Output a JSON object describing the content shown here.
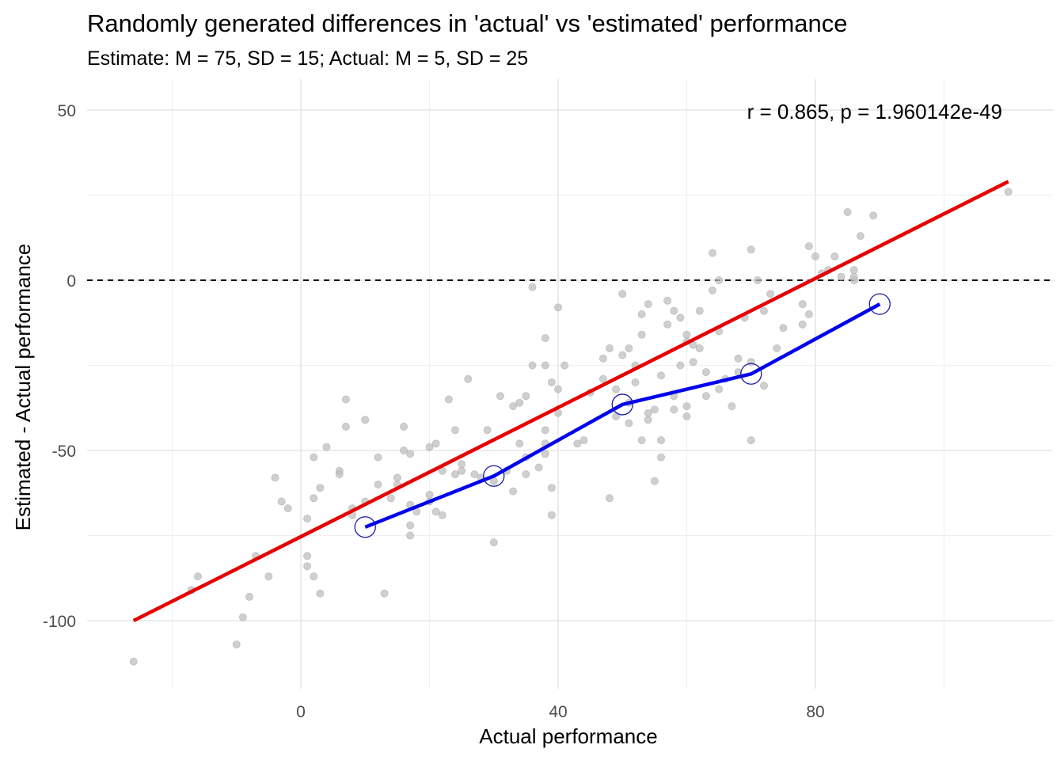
{
  "chart_data": {
    "type": "scatter",
    "title": "Randomly generated differences in 'actual' vs 'estimated' performance",
    "subtitle": "Estimate: M = 75, SD = 15; Actual: M = 5, SD = 25",
    "xlabel": "Actual performance",
    "ylabel": "Estimated - Actual performance",
    "xlim": [
      -26,
      116
    ],
    "ylim": [
      -120,
      55
    ],
    "x_ticks": [
      0,
      40,
      80
    ],
    "y_ticks": [
      50,
      0,
      -50,
      -100
    ],
    "grid": true,
    "annotation": "r = 0.865, p = 1.960142e-49",
    "reference_line": {
      "y": 0,
      "style": "dashed",
      "color": "#000000"
    },
    "colors": {
      "points": "#bfbfbf",
      "regression": "#e60000",
      "binned": "#0000ee"
    },
    "regression_line": {
      "x": [
        -26,
        110
      ],
      "y": [
        -100,
        29
      ]
    },
    "binned_means": {
      "x": [
        10,
        30,
        50,
        70,
        90
      ],
      "y": [
        -72.5,
        -57.5,
        -36.5,
        -27.5,
        -7
      ]
    },
    "series": [
      {
        "points": [
          [
            -26,
            -112
          ],
          [
            -17,
            -91
          ],
          [
            -16,
            -87
          ],
          [
            -9,
            -99
          ],
          [
            -8,
            -93
          ],
          [
            -7,
            -81
          ],
          [
            -5,
            -87
          ],
          [
            -4,
            -58
          ],
          [
            -3,
            -65
          ],
          [
            -2,
            -67
          ],
          [
            -10,
            -107
          ],
          [
            1,
            -81
          ],
          [
            1,
            -84
          ],
          [
            1,
            -70
          ],
          [
            2,
            -52
          ],
          [
            2,
            -64
          ],
          [
            2,
            -87
          ],
          [
            3,
            -61
          ],
          [
            3,
            -92
          ],
          [
            4,
            -49
          ],
          [
            6,
            -56
          ],
          [
            6,
            -57
          ],
          [
            7,
            -35
          ],
          [
            7,
            -43
          ],
          [
            8,
            -69
          ],
          [
            8,
            -67
          ],
          [
            10,
            -65
          ],
          [
            10,
            -41
          ],
          [
            12,
            -52
          ],
          [
            12,
            -60
          ],
          [
            13,
            -92
          ],
          [
            14,
            -64
          ],
          [
            15,
            -60
          ],
          [
            15,
            -58
          ],
          [
            16,
            -43
          ],
          [
            16,
            -50
          ],
          [
            17,
            -51
          ],
          [
            17,
            -66
          ],
          [
            17,
            -72
          ],
          [
            17,
            -75
          ],
          [
            18,
            -68
          ],
          [
            20,
            -65
          ],
          [
            20,
            -63
          ],
          [
            20,
            -49
          ],
          [
            21,
            -48
          ],
          [
            21,
            -68
          ],
          [
            22,
            -69
          ],
          [
            22,
            -56
          ],
          [
            23,
            -35
          ],
          [
            24,
            -44
          ],
          [
            24,
            -57
          ],
          [
            25,
            -54
          ],
          [
            25,
            -56
          ],
          [
            26,
            -29
          ],
          [
            27,
            -57
          ],
          [
            28,
            -58
          ],
          [
            29,
            -44
          ],
          [
            30,
            -59
          ],
          [
            30,
            -77
          ],
          [
            31,
            -34
          ],
          [
            32,
            -56
          ],
          [
            33,
            -62
          ],
          [
            33,
            -37
          ],
          [
            34,
            -36
          ],
          [
            34,
            -48
          ],
          [
            35,
            -34
          ],
          [
            35,
            -52
          ],
          [
            35,
            -57
          ],
          [
            36,
            -25
          ],
          [
            36,
            -2
          ],
          [
            37,
            -55
          ],
          [
            38,
            -17
          ],
          [
            38,
            -25
          ],
          [
            38,
            -44
          ],
          [
            38,
            -48
          ],
          [
            38,
            -51
          ],
          [
            39,
            -61
          ],
          [
            39,
            -69
          ],
          [
            39,
            -30
          ],
          [
            40,
            -8
          ],
          [
            40,
            -32
          ],
          [
            40,
            -39
          ],
          [
            41,
            -25
          ],
          [
            43,
            -48
          ],
          [
            44,
            -47
          ],
          [
            45,
            -33
          ],
          [
            47,
            -23
          ],
          [
            47,
            -29
          ],
          [
            48,
            -20
          ],
          [
            48,
            -64
          ],
          [
            49,
            -40
          ],
          [
            49,
            -32
          ],
          [
            50,
            -4
          ],
          [
            50,
            -22
          ],
          [
            51,
            -42
          ],
          [
            51,
            -36
          ],
          [
            51,
            -20
          ],
          [
            52,
            -25
          ],
          [
            52,
            -30
          ],
          [
            53,
            -16
          ],
          [
            53,
            -10
          ],
          [
            53,
            -47
          ],
          [
            54,
            -7
          ],
          [
            54,
            -39
          ],
          [
            54,
            -41
          ],
          [
            55,
            -59
          ],
          [
            55,
            -38
          ],
          [
            56,
            -28
          ],
          [
            56,
            -47
          ],
          [
            56,
            -52
          ],
          [
            57,
            -13
          ],
          [
            57,
            -6
          ],
          [
            58,
            -9
          ],
          [
            58,
            -34
          ],
          [
            58,
            -38
          ],
          [
            59,
            -11
          ],
          [
            59,
            -25
          ],
          [
            60,
            -16
          ],
          [
            60,
            -18
          ],
          [
            60,
            -37
          ],
          [
            60,
            -40
          ],
          [
            61,
            -24
          ],
          [
            61,
            -19
          ],
          [
            62,
            -20
          ],
          [
            62,
            -9
          ],
          [
            63,
            -34
          ],
          [
            63,
            -27
          ],
          [
            64,
            -3
          ],
          [
            64,
            8
          ],
          [
            65,
            0
          ],
          [
            65,
            -15
          ],
          [
            65,
            -32
          ],
          [
            66,
            -29
          ],
          [
            67,
            -37
          ],
          [
            68,
            -23
          ],
          [
            68,
            -27
          ],
          [
            69,
            -11
          ],
          [
            70,
            9
          ],
          [
            70,
            -24
          ],
          [
            70,
            -47
          ],
          [
            71,
            0
          ],
          [
            72,
            -9
          ],
          [
            72,
            -31
          ],
          [
            73,
            -4
          ],
          [
            74,
            -20
          ],
          [
            75,
            -14
          ],
          [
            78,
            -13
          ],
          [
            78,
            -7
          ],
          [
            79,
            -10
          ],
          [
            79,
            10
          ],
          [
            80,
            7
          ],
          [
            81,
            2
          ],
          [
            82,
            3
          ],
          [
            83,
            7
          ],
          [
            84,
            1
          ],
          [
            85,
            20
          ],
          [
            86,
            0
          ],
          [
            86,
            3
          ],
          [
            86,
            1
          ],
          [
            87,
            13
          ],
          [
            89,
            19
          ],
          [
            110,
            26
          ]
        ]
      }
    ]
  }
}
